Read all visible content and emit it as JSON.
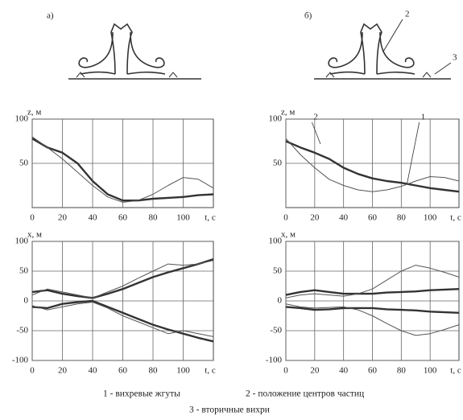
{
  "figure": {
    "panels": [
      {
        "label": "а)"
      },
      {
        "label": "б)",
        "callouts": [
          "2",
          "3"
        ]
      }
    ],
    "caption": [
      "1 - вихревые жгуты",
      "2 - положение центров частиц",
      "3 - вторичные вихри"
    ]
  },
  "chart_data": [
    {
      "type": "line",
      "ylabel": "z, м",
      "xlabel": "t, с",
      "x": [
        0,
        10,
        20,
        30,
        40,
        50,
        60,
        70,
        80,
        90,
        100,
        110,
        120
      ],
      "xlim": [
        0,
        120
      ],
      "xticks": [
        0,
        20,
        40,
        60,
        80,
        100
      ],
      "ylim": [
        0,
        100
      ],
      "yticks": [
        50,
        100
      ],
      "grid": true,
      "series": [
        {
          "color": "#333333",
          "width": 2.4,
          "values": [
            78,
            68,
            62,
            50,
            30,
            15,
            8,
            8,
            10,
            11,
            12,
            14,
            15
          ]
        },
        {
          "color": "#555555",
          "width": 1,
          "values": [
            80,
            68,
            55,
            40,
            25,
            12,
            6,
            8,
            15,
            25,
            34,
            32,
            22
          ]
        }
      ]
    },
    {
      "type": "line",
      "ylabel": "z, м",
      "xlabel": "t, с",
      "x": [
        0,
        10,
        20,
        30,
        40,
        50,
        60,
        70,
        80,
        90,
        100,
        110,
        120
      ],
      "xlim": [
        0,
        120
      ],
      "xticks": [
        0,
        20,
        40,
        60,
        80,
        100
      ],
      "ylim": [
        0,
        100
      ],
      "yticks": [
        50,
        100
      ],
      "grid": true,
      "annotations": [
        "2",
        "1"
      ],
      "series": [
        {
          "color": "#333333",
          "width": 2.4,
          "values": [
            75,
            68,
            62,
            55,
            45,
            38,
            33,
            30,
            28,
            25,
            22,
            20,
            18
          ]
        },
        {
          "color": "#555555",
          "width": 1,
          "values": [
            78,
            60,
            45,
            32,
            25,
            20,
            18,
            20,
            24,
            30,
            35,
            34,
            30
          ]
        }
      ]
    },
    {
      "type": "line",
      "ylabel": "x, м",
      "xlabel": "t, с",
      "x": [
        0,
        10,
        20,
        30,
        40,
        50,
        60,
        70,
        80,
        90,
        100,
        110,
        120
      ],
      "xlim": [
        0,
        120
      ],
      "xticks": [
        0,
        20,
        40,
        60,
        80,
        100
      ],
      "ylim": [
        -100,
        100
      ],
      "yticks": [
        -100,
        -50,
        0,
        50,
        100
      ],
      "grid": true,
      "series": [
        {
          "color": "#333333",
          "width": 2.4,
          "values": [
            15,
            18,
            12,
            8,
            5,
            12,
            20,
            30,
            40,
            48,
            55,
            62,
            70
          ]
        },
        {
          "color": "#555555",
          "width": 1,
          "values": [
            10,
            20,
            15,
            10,
            5,
            15,
            25,
            38,
            50,
            62,
            60,
            62,
            68
          ]
        },
        {
          "color": "#333333",
          "width": 2.4,
          "values": [
            -10,
            -12,
            -5,
            -2,
            0,
            -10,
            -20,
            -30,
            -40,
            -48,
            -55,
            -62,
            -68
          ]
        },
        {
          "color": "#555555",
          "width": 1,
          "values": [
            -8,
            -15,
            -10,
            -5,
            -2,
            -12,
            -25,
            -35,
            -45,
            -55,
            -50,
            -55,
            -60
          ]
        }
      ]
    },
    {
      "type": "line",
      "ylabel": "x, м",
      "xlabel": "t, с",
      "x": [
        0,
        10,
        20,
        30,
        40,
        50,
        60,
        70,
        80,
        90,
        100,
        110,
        120
      ],
      "xlim": [
        0,
        120
      ],
      "xticks": [
        0,
        20,
        40,
        60,
        80,
        100
      ],
      "ylim": [
        -100,
        100
      ],
      "yticks": [
        -100,
        -50,
        0,
        50,
        100
      ],
      "grid": true,
      "series": [
        {
          "color": "#333333",
          "width": 2.4,
          "values": [
            10,
            15,
            18,
            15,
            12,
            12,
            12,
            14,
            15,
            16,
            18,
            19,
            20
          ]
        },
        {
          "color": "#555555",
          "width": 1,
          "values": [
            5,
            10,
            12,
            10,
            8,
            12,
            20,
            35,
            50,
            60,
            55,
            48,
            40
          ]
        },
        {
          "color": "#333333",
          "width": 2.4,
          "values": [
            -10,
            -12,
            -15,
            -14,
            -12,
            -12,
            -12,
            -14,
            -15,
            -16,
            -18,
            -19,
            -20
          ]
        },
        {
          "color": "#555555",
          "width": 1,
          "values": [
            -5,
            -10,
            -12,
            -11,
            -10,
            -15,
            -25,
            -38,
            -50,
            -58,
            -55,
            -48,
            -40
          ]
        }
      ]
    }
  ]
}
